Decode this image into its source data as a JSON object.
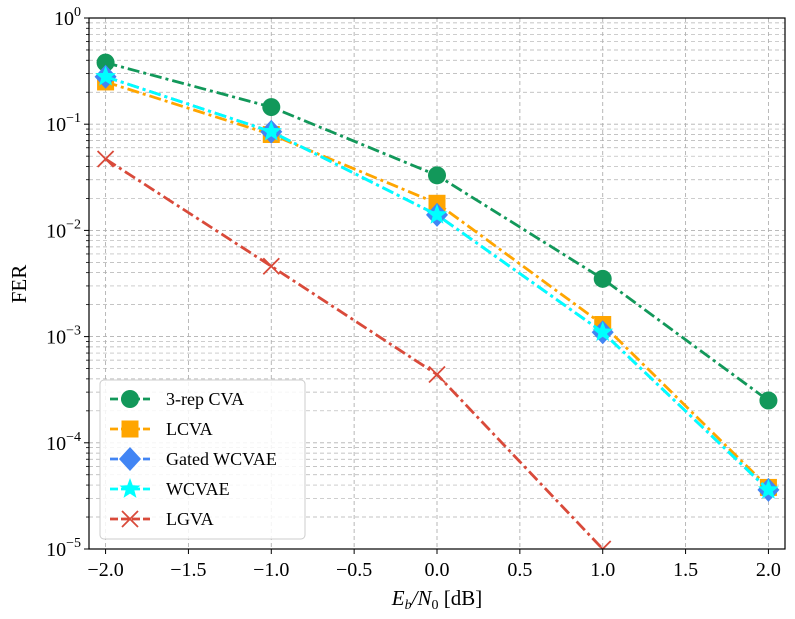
{
  "chart_data": {
    "type": "line",
    "xlabel_main": "E",
    "xlabel_sub_b": "b",
    "xlabel_slash": "/N",
    "xlabel_sub_0": "0",
    "xlabel_unit": " [dB]",
    "ylabel": "FER",
    "x_ticks": [
      "−2.0",
      "−1.5",
      "−1.0",
      "−0.5",
      "0.0",
      "0.5",
      "1.0",
      "1.5",
      "2.0"
    ],
    "x_tick_values": [
      -2.0,
      -1.5,
      -1.0,
      -0.5,
      0.0,
      0.5,
      1.0,
      1.5,
      2.0
    ],
    "y_ticks": [
      {
        "base": "10",
        "exp": "0",
        "value": 0
      },
      {
        "base": "10",
        "exp": "−1",
        "value": -1
      },
      {
        "base": "10",
        "exp": "−2",
        "value": -2
      },
      {
        "base": "10",
        "exp": "−3",
        "value": -3
      },
      {
        "base": "10",
        "exp": "−4",
        "value": -4
      },
      {
        "base": "10",
        "exp": "−5",
        "value": -5
      }
    ],
    "xlim": [
      -2.1,
      2.1
    ],
    "ylim_log10": [
      -5,
      0
    ],
    "yscale": "log",
    "grid": "both",
    "legend_position": "lower-left",
    "series": [
      {
        "name": "3-rep CVA",
        "color": "#12985A",
        "marker": "circle",
        "x": [
          -2.0,
          -1.0,
          0.0,
          1.0,
          2.0
        ],
        "y": [
          0.38,
          0.145,
          0.033,
          0.0035,
          0.00025
        ]
      },
      {
        "name": "LCVA",
        "color": "#FFA500",
        "marker": "square",
        "x": [
          -2.0,
          -1.0,
          0.0,
          1.0,
          2.0
        ],
        "y": [
          0.25,
          0.08,
          0.018,
          0.0013,
          3.8e-05
        ]
      },
      {
        "name": "Gated WCVAE",
        "color": "#4285F4",
        "marker": "diamond",
        "x": [
          -2.0,
          -1.0,
          0.0,
          1.0,
          2.0
        ],
        "y": [
          0.28,
          0.085,
          0.014,
          0.0011,
          3.6e-05
        ]
      },
      {
        "name": "WCVAE",
        "color": "#00FFFF",
        "marker": "star",
        "x": [
          -2.0,
          -1.0,
          0.0,
          1.0,
          2.0
        ],
        "y": [
          0.28,
          0.085,
          0.014,
          0.0011,
          3.6e-05
        ]
      },
      {
        "name": "LGVA",
        "color": "#D94A3A",
        "marker": "x",
        "x": [
          -2.0,
          -1.0,
          0.0,
          1.0
        ],
        "y": [
          0.047,
          0.0046,
          0.00044,
          1e-05
        ]
      }
    ]
  }
}
